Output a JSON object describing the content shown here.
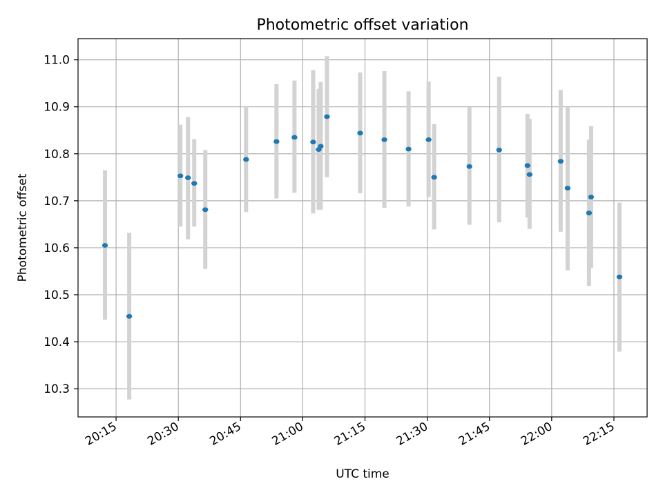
{
  "chart_data": {
    "type": "scatter",
    "title": "Photometric offset variation",
    "xlabel": "UTC time",
    "ylabel": "Photometric offset",
    "x_ticks": [
      "20:15",
      "20:30",
      "20:45",
      "21:00",
      "21:15",
      "21:30",
      "21:45",
      "22:00",
      "22:15"
    ],
    "y_ticks": [
      "10.3",
      "10.4",
      "10.5",
      "10.6",
      "10.7",
      "10.8",
      "10.9",
      "11.0"
    ],
    "ylim": [
      10.24,
      11.045
    ],
    "xlim": [
      "20:05:50",
      "22:23:00"
    ],
    "grid": true,
    "colors": {
      "point": "#1f77b4",
      "errorbar": "#d3d3d3"
    },
    "points": [
      {
        "x": "20:12:20",
        "y": 10.605,
        "lo": 10.447,
        "hi": 10.765
      },
      {
        "x": "20:18:10",
        "y": 10.454,
        "lo": 10.277,
        "hi": 10.632
      },
      {
        "x": "20:30:30",
        "y": 10.753,
        "lo": 10.645,
        "hi": 10.862
      },
      {
        "x": "20:32:20",
        "y": 10.749,
        "lo": 10.618,
        "hi": 10.878
      },
      {
        "x": "20:33:50",
        "y": 10.737,
        "lo": 10.645,
        "hi": 10.831
      },
      {
        "x": "20:36:30",
        "y": 10.681,
        "lo": 10.555,
        "hi": 10.808
      },
      {
        "x": "20:46:20",
        "y": 10.788,
        "lo": 10.676,
        "hi": 10.902
      },
      {
        "x": "20:53:40",
        "y": 10.826,
        "lo": 10.705,
        "hi": 10.948
      },
      {
        "x": "20:58:00",
        "y": 10.835,
        "lo": 10.717,
        "hi": 10.956
      },
      {
        "x": "21:02:30",
        "y": 10.825,
        "lo": 10.673,
        "hi": 10.978
      },
      {
        "x": "21:03:50",
        "y": 10.809,
        "lo": 10.681,
        "hi": 10.938
      },
      {
        "x": "21:04:20",
        "y": 10.816,
        "lo": 10.681,
        "hi": 10.953
      },
      {
        "x": "21:05:50",
        "y": 10.879,
        "lo": 10.75,
        "hi": 11.008
      },
      {
        "x": "21:13:50",
        "y": 10.844,
        "lo": 10.716,
        "hi": 10.973
      },
      {
        "x": "21:19:40",
        "y": 10.83,
        "lo": 10.685,
        "hi": 10.976
      },
      {
        "x": "21:25:30",
        "y": 10.81,
        "lo": 10.688,
        "hi": 10.933
      },
      {
        "x": "21:30:20",
        "y": 10.83,
        "lo": 10.708,
        "hi": 10.954
      },
      {
        "x": "21:31:40",
        "y": 10.75,
        "lo": 10.639,
        "hi": 10.863
      },
      {
        "x": "21:40:10",
        "y": 10.773,
        "lo": 10.649,
        "hi": 10.899
      },
      {
        "x": "21:47:20",
        "y": 10.808,
        "lo": 10.654,
        "hi": 10.964
      },
      {
        "x": "21:54:10",
        "y": 10.775,
        "lo": 10.664,
        "hi": 10.885
      },
      {
        "x": "21:54:40",
        "y": 10.756,
        "lo": 10.64,
        "hi": 10.874
      },
      {
        "x": "22:02:10",
        "y": 10.784,
        "lo": 10.634,
        "hi": 10.936
      },
      {
        "x": "22:03:50",
        "y": 10.727,
        "lo": 10.552,
        "hi": 10.9
      },
      {
        "x": "22:09:00",
        "y": 10.674,
        "lo": 10.519,
        "hi": 10.83
      },
      {
        "x": "22:09:30",
        "y": 10.708,
        "lo": 10.557,
        "hi": 10.859
      },
      {
        "x": "22:16:20",
        "y": 10.538,
        "lo": 10.379,
        "hi": 10.696
      }
    ]
  }
}
